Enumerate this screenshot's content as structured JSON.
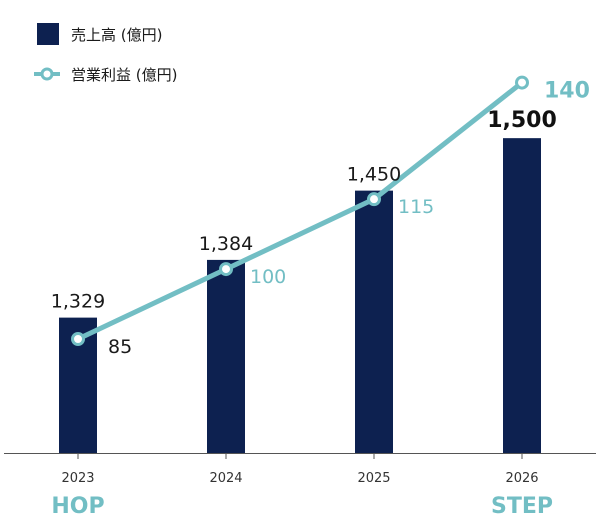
{
  "chart_data": {
    "type": "bar",
    "title": "",
    "xlabel": "",
    "ylabel": "",
    "categories": [
      "2023",
      "2024",
      "2025",
      "2026"
    ],
    "series": [
      {
        "name": "売上高 (億円)",
        "type": "bar",
        "values": [
          1329,
          1384,
          1450,
          1500
        ],
        "value_labels": [
          "1,329",
          "1,384",
          "1,450",
          "1,500"
        ],
        "color": "#0d2150"
      },
      {
        "name": "営業利益 (億円)",
        "type": "line",
        "values": [
          85,
          100,
          115,
          140
        ],
        "value_labels": [
          "85",
          "100",
          "115",
          "140"
        ],
        "color": "#72bec4"
      }
    ],
    "phase_labels": [
      "HOP",
      "",
      "",
      "STEP"
    ],
    "legend_position": "top-left",
    "grid": false
  },
  "colors": {
    "bar": "#0d2150",
    "line": "#72bec4",
    "axis": "#555555",
    "phase_text": "#72bec4"
  }
}
